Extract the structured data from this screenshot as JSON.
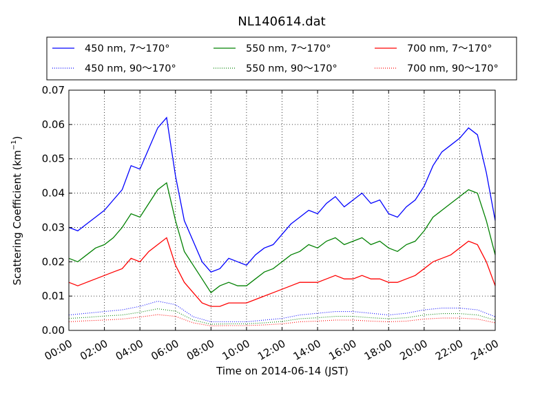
{
  "chart_data": {
    "type": "line",
    "title": "NL140614.dat",
    "xlabel": "Time on 2014-06-14 (JST)",
    "ylabel_main": "Scattering Coefficient (km",
    "ylabel_sup": "−1",
    "ylabel_end": ")",
    "xlim": [
      "00:00",
      "24:00"
    ],
    "ylim": [
      0,
      0.07
    ],
    "grid": true,
    "legend_position": "above-plot",
    "x_ticks": [
      "00:00",
      "02:00",
      "04:00",
      "06:00",
      "08:00",
      "10:00",
      "12:00",
      "14:00",
      "16:00",
      "18:00",
      "20:00",
      "22:00",
      "24:00"
    ],
    "y_ticks": [
      "0.00",
      "0.01",
      "0.02",
      "0.03",
      "0.04",
      "0.05",
      "0.06",
      "0.07"
    ],
    "series": [
      {
        "name": "450 nm, 7～170°",
        "color": "#0000ff",
        "style": "solid",
        "x": [
          0,
          0.5,
          1,
          1.5,
          2,
          2.5,
          3,
          3.5,
          4,
          4.5,
          5,
          5.5,
          6,
          6.5,
          7,
          7.5,
          8,
          8.5,
          9,
          9.5,
          10,
          10.5,
          11,
          11.5,
          12,
          12.5,
          13,
          13.5,
          14,
          14.5,
          15,
          15.5,
          16,
          16.5,
          17,
          17.5,
          18,
          18.5,
          19,
          19.5,
          20,
          20.5,
          21,
          21.5,
          22,
          22.5,
          23,
          23.5,
          24
        ],
        "y": [
          0.03,
          0.029,
          0.031,
          0.033,
          0.035,
          0.038,
          0.041,
          0.048,
          0.047,
          0.053,
          0.059,
          0.062,
          0.045,
          0.032,
          0.026,
          0.02,
          0.017,
          0.018,
          0.021,
          0.02,
          0.019,
          0.022,
          0.024,
          0.025,
          0.028,
          0.031,
          0.033,
          0.035,
          0.034,
          0.037,
          0.039,
          0.036,
          0.038,
          0.04,
          0.037,
          0.038,
          0.034,
          0.033,
          0.036,
          0.038,
          0.042,
          0.048,
          0.052,
          0.054,
          0.056,
          0.059,
          0.057,
          0.046,
          0.032
        ]
      },
      {
        "name": "550 nm, 7～170°",
        "color": "#008000",
        "style": "solid",
        "x": [
          0,
          0.5,
          1,
          1.5,
          2,
          2.5,
          3,
          3.5,
          4,
          4.5,
          5,
          5.5,
          6,
          6.5,
          7,
          7.5,
          8,
          8.5,
          9,
          9.5,
          10,
          10.5,
          11,
          11.5,
          12,
          12.5,
          13,
          13.5,
          14,
          14.5,
          15,
          15.5,
          16,
          16.5,
          17,
          17.5,
          18,
          18.5,
          19,
          19.5,
          20,
          20.5,
          21,
          21.5,
          22,
          22.5,
          23,
          23.5,
          24
        ],
        "y": [
          0.021,
          0.02,
          0.022,
          0.024,
          0.025,
          0.027,
          0.03,
          0.034,
          0.033,
          0.037,
          0.041,
          0.043,
          0.032,
          0.023,
          0.019,
          0.015,
          0.011,
          0.013,
          0.014,
          0.013,
          0.013,
          0.015,
          0.017,
          0.018,
          0.02,
          0.022,
          0.023,
          0.025,
          0.024,
          0.026,
          0.027,
          0.025,
          0.026,
          0.027,
          0.025,
          0.026,
          0.024,
          0.023,
          0.025,
          0.026,
          0.029,
          0.033,
          0.035,
          0.037,
          0.039,
          0.041,
          0.04,
          0.032,
          0.022
        ]
      },
      {
        "name": "700 nm, 7～170°",
        "color": "#ff0000",
        "style": "solid",
        "x": [
          0,
          0.5,
          1,
          1.5,
          2,
          2.5,
          3,
          3.5,
          4,
          4.5,
          5,
          5.5,
          6,
          6.5,
          7,
          7.5,
          8,
          8.5,
          9,
          9.5,
          10,
          10.5,
          11,
          11.5,
          12,
          12.5,
          13,
          13.5,
          14,
          14.5,
          15,
          15.5,
          16,
          16.5,
          17,
          17.5,
          18,
          18.5,
          19,
          19.5,
          20,
          20.5,
          21,
          21.5,
          22,
          22.5,
          23,
          23.5,
          24
        ],
        "y": [
          0.014,
          0.013,
          0.014,
          0.015,
          0.016,
          0.017,
          0.018,
          0.021,
          0.02,
          0.023,
          0.025,
          0.027,
          0.019,
          0.014,
          0.011,
          0.008,
          0.007,
          0.007,
          0.008,
          0.008,
          0.008,
          0.009,
          0.01,
          0.011,
          0.012,
          0.013,
          0.014,
          0.014,
          0.014,
          0.015,
          0.016,
          0.015,
          0.015,
          0.016,
          0.015,
          0.015,
          0.014,
          0.014,
          0.015,
          0.016,
          0.018,
          0.02,
          0.021,
          0.022,
          0.024,
          0.026,
          0.025,
          0.02,
          0.013
        ]
      },
      {
        "name": "450 nm, 90～170°",
        "color": "#0000ff",
        "style": "dotted",
        "x": [
          0,
          1,
          2,
          3,
          4,
          5,
          6,
          7,
          8,
          9,
          10,
          11,
          12,
          13,
          14,
          15,
          16,
          17,
          18,
          19,
          20,
          21,
          22,
          23,
          24
        ],
        "y": [
          0.0045,
          0.005,
          0.0055,
          0.006,
          0.007,
          0.0085,
          0.0075,
          0.004,
          0.0025,
          0.0025,
          0.0025,
          0.003,
          0.0035,
          0.0045,
          0.005,
          0.0055,
          0.0055,
          0.005,
          0.0045,
          0.005,
          0.006,
          0.0065,
          0.0065,
          0.006,
          0.004
        ]
      },
      {
        "name": "550 nm, 90～170°",
        "color": "#008000",
        "style": "dotted",
        "x": [
          0,
          1,
          2,
          3,
          4,
          5,
          6,
          7,
          8,
          9,
          10,
          11,
          12,
          13,
          14,
          15,
          16,
          17,
          18,
          19,
          20,
          21,
          22,
          23,
          24
        ],
        "y": [
          0.0035,
          0.0038,
          0.0042,
          0.0045,
          0.0053,
          0.0063,
          0.0056,
          0.003,
          0.0018,
          0.0019,
          0.0019,
          0.0022,
          0.0026,
          0.0034,
          0.0037,
          0.0041,
          0.0041,
          0.0037,
          0.0034,
          0.0037,
          0.0045,
          0.0049,
          0.0049,
          0.0045,
          0.003
        ]
      },
      {
        "name": "700 nm, 90～170°",
        "color": "#ff0000",
        "style": "dotted",
        "x": [
          0,
          1,
          2,
          3,
          4,
          5,
          6,
          7,
          8,
          9,
          10,
          11,
          12,
          13,
          14,
          15,
          16,
          17,
          18,
          19,
          20,
          21,
          22,
          23,
          24
        ],
        "y": [
          0.0025,
          0.0028,
          0.003,
          0.0033,
          0.0039,
          0.0046,
          0.0041,
          0.0022,
          0.0013,
          0.0014,
          0.0014,
          0.0016,
          0.0019,
          0.0025,
          0.0027,
          0.003,
          0.003,
          0.0027,
          0.0025,
          0.0027,
          0.0033,
          0.0036,
          0.0036,
          0.0033,
          0.0022
        ]
      }
    ]
  }
}
